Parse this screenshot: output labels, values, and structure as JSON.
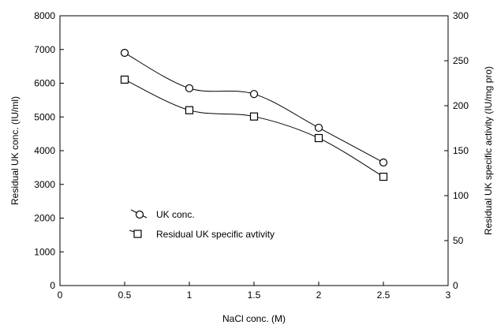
{
  "chart_data": {
    "type": "line",
    "x": [
      0.5,
      1,
      1.5,
      2,
      2.5
    ],
    "xlabel": "NaCl conc. (M)",
    "ylabel_left": "Residual UK conc. (IU/ml)",
    "ylabel_right": "Residual UK specific activity (IU/mg pro)",
    "xlim": [
      0,
      3
    ],
    "ylim_left": [
      0,
      8000
    ],
    "ylim_right": [
      0,
      300
    ],
    "xticks": [
      "0",
      "0.5",
      "1",
      "1.5",
      "2",
      "2.5",
      "3"
    ],
    "yticks_left": [
      "0",
      "1000",
      "2000",
      "3000",
      "4000",
      "5000",
      "6000",
      "7000",
      "8000"
    ],
    "yticks_right": [
      "0",
      "50",
      "100",
      "150",
      "200",
      "250",
      "300"
    ],
    "grid": false,
    "legend_position": "center-left",
    "series": [
      {
        "name": "UK conc.",
        "axis": "left",
        "marker": "circle",
        "values": [
          6900,
          5850,
          5680,
          4680,
          3650
        ]
      },
      {
        "name": "Residual UK specific avtivity",
        "axis": "right",
        "marker": "square",
        "values": [
          229,
          195,
          188,
          164,
          121
        ]
      }
    ]
  }
}
